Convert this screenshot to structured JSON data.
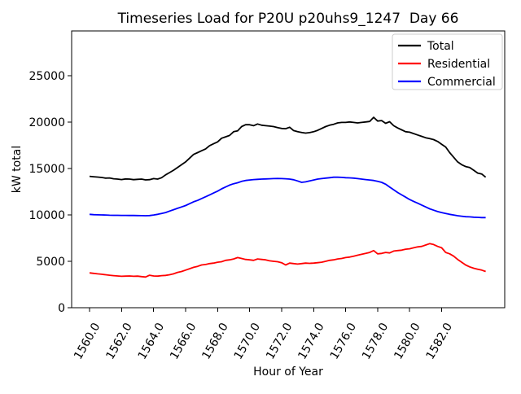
{
  "title": "Timeseries Load for P20U p20uhs9_1247  Day 66",
  "chart_data": {
    "type": "line",
    "title": "Timeseries Load for P20U p20uhs9_1247  Day 66",
    "xlabel": "Hour of Year",
    "ylabel": "kW total",
    "grid": false,
    "legend_position": "upper right",
    "xlim": [
      1558.88,
      1585.94
    ],
    "ylim": [
      0,
      29800
    ],
    "x_ticks": [
      1560.0,
      1562.0,
      1564.0,
      1566.0,
      1568.0,
      1570.0,
      1572.0,
      1574.0,
      1576.0,
      1578.0,
      1580.0,
      1582.0
    ],
    "x_tick_labels": [
      "1560.0",
      "1562.0",
      "1564.0",
      "1566.0",
      "1568.0",
      "1570.0",
      "1572.0",
      "1574.0",
      "1576.0",
      "1578.0",
      "1580.0",
      "1582.0"
    ],
    "y_ticks": [
      0,
      5000,
      10000,
      15000,
      20000,
      25000
    ],
    "y_tick_labels": [
      "0",
      "5000",
      "10000",
      "15000",
      "20000",
      "25000"
    ],
    "x_tick_rotation_deg": 60,
    "x": [
      1560.0,
      1560.25,
      1560.5,
      1560.75,
      1561.0,
      1561.25,
      1561.5,
      1561.75,
      1562.0,
      1562.25,
      1562.5,
      1562.75,
      1563.0,
      1563.25,
      1563.5,
      1563.75,
      1564.0,
      1564.25,
      1564.5,
      1564.75,
      1565.0,
      1565.25,
      1565.5,
      1565.75,
      1566.0,
      1566.25,
      1566.5,
      1566.75,
      1567.0,
      1567.25,
      1567.5,
      1567.75,
      1568.0,
      1568.25,
      1568.5,
      1568.75,
      1569.0,
      1569.25,
      1569.5,
      1569.75,
      1570.0,
      1570.25,
      1570.5,
      1570.75,
      1571.0,
      1571.25,
      1571.5,
      1571.75,
      1572.0,
      1572.25,
      1572.5,
      1572.75,
      1573.0,
      1573.25,
      1573.5,
      1573.75,
      1574.0,
      1574.25,
      1574.5,
      1574.75,
      1575.0,
      1575.25,
      1575.5,
      1575.75,
      1576.0,
      1576.25,
      1576.5,
      1576.75,
      1577.0,
      1577.25,
      1577.5,
      1577.75,
      1578.0,
      1578.25,
      1578.5,
      1578.75,
      1579.0,
      1579.25,
      1579.5,
      1579.75,
      1580.0,
      1580.25,
      1580.5,
      1580.75,
      1581.0,
      1581.25,
      1581.5,
      1581.75,
      1582.0,
      1582.25,
      1582.5,
      1582.75,
      1583.0,
      1583.25,
      1583.5,
      1583.75,
      1584.0,
      1584.25,
      1584.5,
      1584.75
    ],
    "series": [
      {
        "name": "Total",
        "color": "#000000",
        "values": [
          14150,
          14100,
          14070,
          14020,
          13950,
          13970,
          13880,
          13850,
          13800,
          13870,
          13850,
          13790,
          13820,
          13850,
          13760,
          13790,
          13900,
          13850,
          14000,
          14300,
          14550,
          14800,
          15100,
          15400,
          15700,
          16100,
          16500,
          16700,
          16900,
          17100,
          17450,
          17650,
          17850,
          18250,
          18400,
          18550,
          18950,
          19050,
          19500,
          19700,
          19700,
          19600,
          19780,
          19650,
          19600,
          19550,
          19500,
          19400,
          19300,
          19270,
          19430,
          19070,
          18950,
          18870,
          18800,
          18850,
          18950,
          19100,
          19300,
          19500,
          19650,
          19750,
          19900,
          19950,
          19950,
          20000,
          19950,
          19900,
          19950,
          20000,
          20050,
          20500,
          20100,
          20150,
          19850,
          20030,
          19600,
          19350,
          19150,
          18950,
          18900,
          18750,
          18600,
          18450,
          18300,
          18200,
          18100,
          17900,
          17600,
          17300,
          16700,
          16200,
          15700,
          15400,
          15200,
          15100,
          14800,
          14500,
          14400,
          14050
        ]
      },
      {
        "name": "Residential",
        "color": "#ff0000",
        "values": [
          3750,
          3700,
          3650,
          3600,
          3550,
          3500,
          3450,
          3420,
          3380,
          3400,
          3420,
          3380,
          3400,
          3350,
          3300,
          3500,
          3420,
          3400,
          3450,
          3480,
          3550,
          3650,
          3800,
          3900,
          4050,
          4200,
          4350,
          4450,
          4600,
          4650,
          4750,
          4800,
          4900,
          4950,
          5100,
          5150,
          5250,
          5400,
          5300,
          5200,
          5150,
          5100,
          5250,
          5200,
          5150,
          5050,
          5000,
          4950,
          4850,
          4600,
          4800,
          4750,
          4700,
          4750,
          4800,
          4780,
          4800,
          4850,
          4900,
          5000,
          5100,
          5150,
          5250,
          5300,
          5400,
          5450,
          5550,
          5650,
          5750,
          5850,
          5950,
          6150,
          5800,
          5850,
          5950,
          5900,
          6100,
          6150,
          6200,
          6300,
          6350,
          6450,
          6550,
          6600,
          6750,
          6900,
          6800,
          6600,
          6450,
          5950,
          5800,
          5550,
          5200,
          4900,
          4600,
          4400,
          4250,
          4150,
          4050,
          3900
        ]
      },
      {
        "name": "Commercial",
        "color": "#0000ff",
        "values": [
          10050,
          10020,
          10000,
          9990,
          9980,
          9960,
          9950,
          9950,
          9940,
          9940,
          9930,
          9930,
          9920,
          9910,
          9900,
          9920,
          9980,
          10050,
          10150,
          10250,
          10400,
          10550,
          10700,
          10850,
          11000,
          11200,
          11400,
          11550,
          11750,
          11950,
          12150,
          12350,
          12550,
          12800,
          13000,
          13200,
          13350,
          13450,
          13600,
          13700,
          13750,
          13800,
          13820,
          13850,
          13870,
          13880,
          13900,
          13910,
          13900,
          13880,
          13850,
          13780,
          13650,
          13500,
          13550,
          13650,
          13750,
          13850,
          13900,
          13950,
          14000,
          14050,
          14050,
          14030,
          14000,
          13980,
          13950,
          13900,
          13850,
          13800,
          13750,
          13700,
          13600,
          13500,
          13300,
          13000,
          12700,
          12400,
          12150,
          11900,
          11650,
          11450,
          11250,
          11050,
          10850,
          10650,
          10500,
          10350,
          10250,
          10150,
          10050,
          9980,
          9900,
          9850,
          9800,
          9780,
          9750,
          9730,
          9700,
          9700
        ]
      }
    ]
  },
  "legend": {
    "items": [
      {
        "label": "Total",
        "color": "#000000"
      },
      {
        "label": "Residential",
        "color": "#ff0000"
      },
      {
        "label": "Commercial",
        "color": "#0000ff"
      }
    ]
  }
}
